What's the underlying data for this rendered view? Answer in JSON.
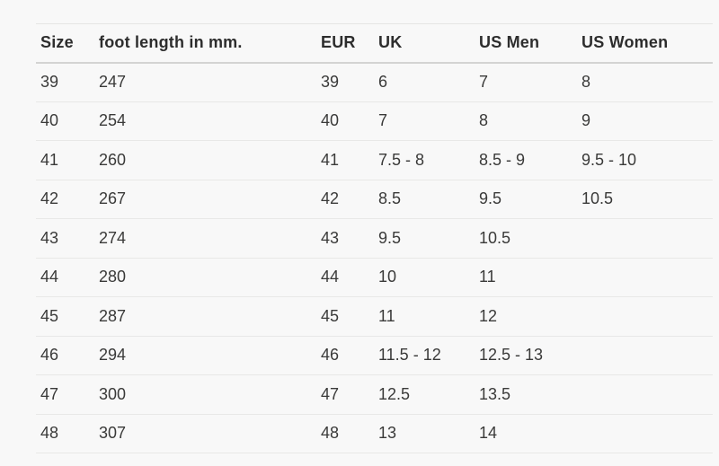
{
  "chart_data": {
    "type": "table",
    "columns": [
      "Size",
      "foot length in mm.",
      "EUR",
      "UK",
      "US Men",
      "US Women"
    ],
    "rows": [
      [
        "39",
        "247",
        "39",
        "6",
        "7",
        "8"
      ],
      [
        "40",
        "254",
        "40",
        "7",
        "8",
        "9"
      ],
      [
        "41",
        "260",
        "41",
        "7.5 - 8",
        "8.5 - 9",
        "9.5 - 10"
      ],
      [
        "42",
        "267",
        "42",
        "8.5",
        "9.5",
        "10.5"
      ],
      [
        "43",
        "274",
        "43",
        "9.5",
        "10.5",
        ""
      ],
      [
        "44",
        "280",
        "44",
        "10",
        "11",
        ""
      ],
      [
        "45",
        "287",
        "45",
        "11",
        "12",
        ""
      ],
      [
        "46",
        "294",
        "46",
        "11.5 - 12",
        "12.5 - 13",
        ""
      ],
      [
        "47",
        "300",
        "47",
        "12.5",
        "13.5",
        ""
      ],
      [
        "48",
        "307",
        "48",
        "13",
        "14",
        ""
      ]
    ]
  },
  "colors": {
    "background": "#f8f8f8",
    "text": "#3a3a39",
    "header_text": "#2d2d2d",
    "row_divider": "#e8e8e7",
    "header_divider": "#d4d4d3",
    "top_divider": "#e5e5e4"
  }
}
